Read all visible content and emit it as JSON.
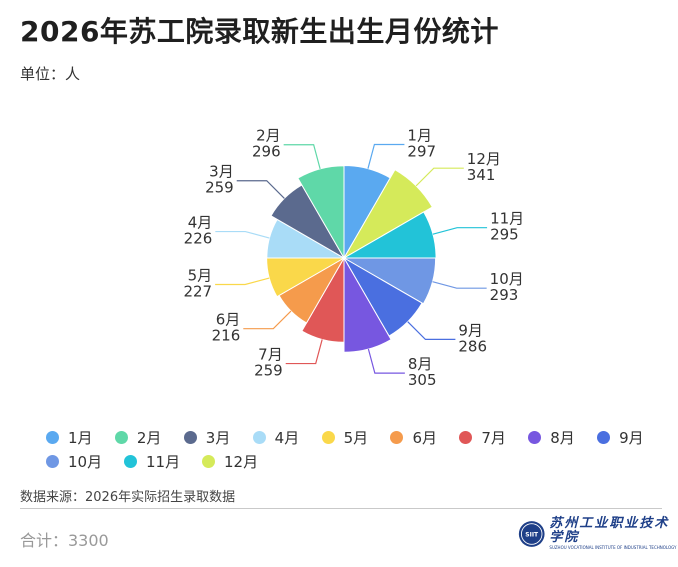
{
  "header": {
    "title": "2026年苏工院录取新生出生月份统计",
    "unit": "单位：人"
  },
  "chart_data": {
    "type": "pie",
    "subtype": "nightingale-rose",
    "title": "2026年苏工院录取新生出生月份统计",
    "unit": "单位：人",
    "categories": [
      "1月",
      "12月",
      "11月",
      "10月",
      "9月",
      "8月",
      "7月",
      "6月",
      "5月",
      "4月",
      "3月",
      "2月"
    ],
    "values": [
      297,
      341,
      295,
      293,
      286,
      305,
      259,
      216,
      227,
      226,
      259,
      296
    ],
    "colors": [
      "#5aa9f0",
      "#d5ea5a",
      "#22c3d8",
      "#6f97e4",
      "#4a6fe0",
      "#7757e0",
      "#e05757",
      "#f59b4c",
      "#fad84a",
      "#a9dcf7",
      "#5b6a8e",
      "#5fd8a8"
    ],
    "legend_position": "bottom"
  },
  "legend": {
    "items": [
      {
        "label": "1月",
        "color": "#5aa9f0"
      },
      {
        "label": "2月",
        "color": "#5fd8a8"
      },
      {
        "label": "3月",
        "color": "#5b6a8e"
      },
      {
        "label": "4月",
        "color": "#a9dcf7"
      },
      {
        "label": "5月",
        "color": "#fad84a"
      },
      {
        "label": "6月",
        "color": "#f59b4c"
      },
      {
        "label": "7月",
        "color": "#e05757"
      },
      {
        "label": "8月",
        "color": "#7757e0"
      },
      {
        "label": "9月",
        "color": "#4a6fe0"
      },
      {
        "label": "10月",
        "color": "#6f97e4"
      },
      {
        "label": "11月",
        "color": "#22c3d8"
      },
      {
        "label": "12月",
        "color": "#d5ea5a"
      }
    ]
  },
  "footer": {
    "source": "数据来源：2026年实际招生录取数据",
    "total": "合计：3300",
    "logo_text": "苏州工业职业技术学院",
    "logo_subtext": "SUZHOU VOCATIONAL INSTITUTE OF INDUSTRIAL TECHNOLOGY",
    "logo_seal_text": "SIIT"
  }
}
